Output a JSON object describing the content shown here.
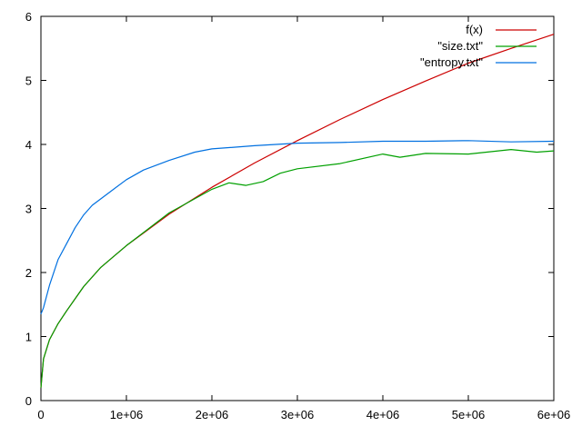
{
  "chart_data": {
    "type": "line",
    "title": "",
    "xlabel": "",
    "ylabel": "",
    "xlim": [
      0,
      6000000
    ],
    "ylim": [
      0,
      6
    ],
    "grid": false,
    "legend_position": "top-right",
    "x_tick_labels": [
      "0",
      "1e+06",
      "2e+06",
      "3e+06",
      "4e+06",
      "5e+06",
      "6e+06"
    ],
    "x_tick_values": [
      0,
      1000000,
      2000000,
      3000000,
      4000000,
      5000000,
      6000000
    ],
    "y_tick_labels": [
      "0",
      "1",
      "2",
      "3",
      "4",
      "5",
      "6"
    ],
    "y_tick_values": [
      0,
      1,
      2,
      3,
      4,
      5,
      6
    ],
    "series": [
      {
        "name": "f(x)",
        "color": "#cc0000",
        "x": [
          0,
          30000,
          100000,
          200000,
          300000,
          500000,
          700000,
          1000000,
          1500000,
          2000000,
          2500000,
          3000000,
          3500000,
          4000000,
          4500000,
          5000000,
          5500000,
          6000000
        ],
        "y": [
          0.2,
          0.65,
          0.95,
          1.2,
          1.4,
          1.78,
          2.08,
          2.42,
          2.91,
          3.33,
          3.71,
          4.06,
          4.39,
          4.7,
          4.99,
          5.27,
          5.5,
          5.72
        ]
      },
      {
        "name": "\"size.txt\"",
        "color": "#00a000",
        "x": [
          0,
          30000,
          100000,
          200000,
          300000,
          500000,
          700000,
          1000000,
          1500000,
          2000000,
          2200000,
          2400000,
          2600000,
          2800000,
          3000000,
          3500000,
          4000000,
          4200000,
          4500000,
          5000000,
          5500000,
          5800000,
          6000000
        ],
        "y": [
          0.2,
          0.65,
          0.95,
          1.2,
          1.4,
          1.78,
          2.08,
          2.42,
          2.93,
          3.3,
          3.4,
          3.36,
          3.42,
          3.55,
          3.62,
          3.7,
          3.85,
          3.8,
          3.86,
          3.85,
          3.92,
          3.88,
          3.9
        ]
      },
      {
        "name": "\"entropy.txt\"",
        "color": "#0070e0",
        "x": [
          0,
          30000,
          100000,
          200000,
          300000,
          400000,
          500000,
          600000,
          800000,
          1000000,
          1200000,
          1500000,
          1800000,
          2000000,
          2500000,
          3000000,
          3500000,
          4000000,
          4500000,
          5000000,
          5500000,
          6000000
        ],
        "y": [
          1.35,
          1.45,
          1.8,
          2.2,
          2.45,
          2.7,
          2.9,
          3.05,
          3.25,
          3.45,
          3.6,
          3.75,
          3.88,
          3.93,
          3.98,
          4.02,
          4.03,
          4.05,
          4.05,
          4.06,
          4.04,
          4.05
        ]
      }
    ]
  }
}
